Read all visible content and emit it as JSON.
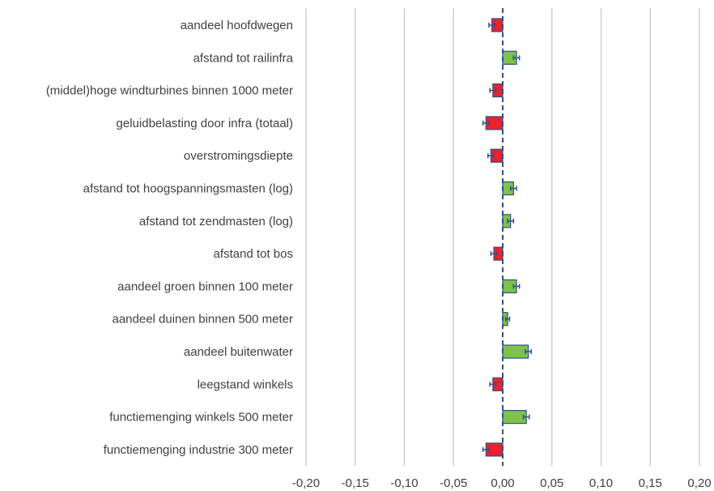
{
  "chart_data": {
    "type": "bar",
    "orientation": "horizontal",
    "title": "",
    "xlabel": "",
    "ylabel": "",
    "xlim": [
      -0.2,
      0.2
    ],
    "grid": true,
    "legend": "none",
    "colors": {
      "positive": "#7ec24a",
      "negative": "#e8232a",
      "border": "#2f4f8f",
      "grid": "#d0d0d0"
    },
    "x_ticks": [
      "-0,20",
      "-0,15",
      "-0,10",
      "-0,05",
      "0,00",
      "0,05",
      "0,10",
      "0,15",
      "0,20"
    ],
    "x_tick_values": [
      -0.2,
      -0.15,
      -0.1,
      -0.05,
      0.0,
      0.05,
      0.1,
      0.15,
      0.2
    ],
    "categories": [
      "aandeel hoofdwegen",
      "afstand tot railinfra",
      "(middel)hoge windturbines binnen 1000 meter",
      "geluidbelasting door infra (totaal)",
      "overstromingsdiepte",
      "afstand tot hoogspanningsmasten (log)",
      "afstand tot zendmasten (log)",
      "afstand tot bos",
      "aandeel groen binnen 100 meter",
      "aandeel duinen binnen 500 meter",
      "aandeel buitenwater",
      "leegstand winkels",
      "functiemenging winkels 500 meter",
      "functiemenging industrie 300 meter"
    ],
    "values": [
      -0.011,
      0.014,
      -0.01,
      -0.017,
      -0.012,
      0.011,
      0.008,
      -0.009,
      0.014,
      0.005,
      0.026,
      -0.01,
      0.024,
      -0.017
    ],
    "error": [
      0.003,
      0.003,
      0.003,
      0.003,
      0.003,
      0.003,
      0.003,
      0.003,
      0.003,
      0.002,
      0.003,
      0.003,
      0.003,
      0.003
    ]
  }
}
